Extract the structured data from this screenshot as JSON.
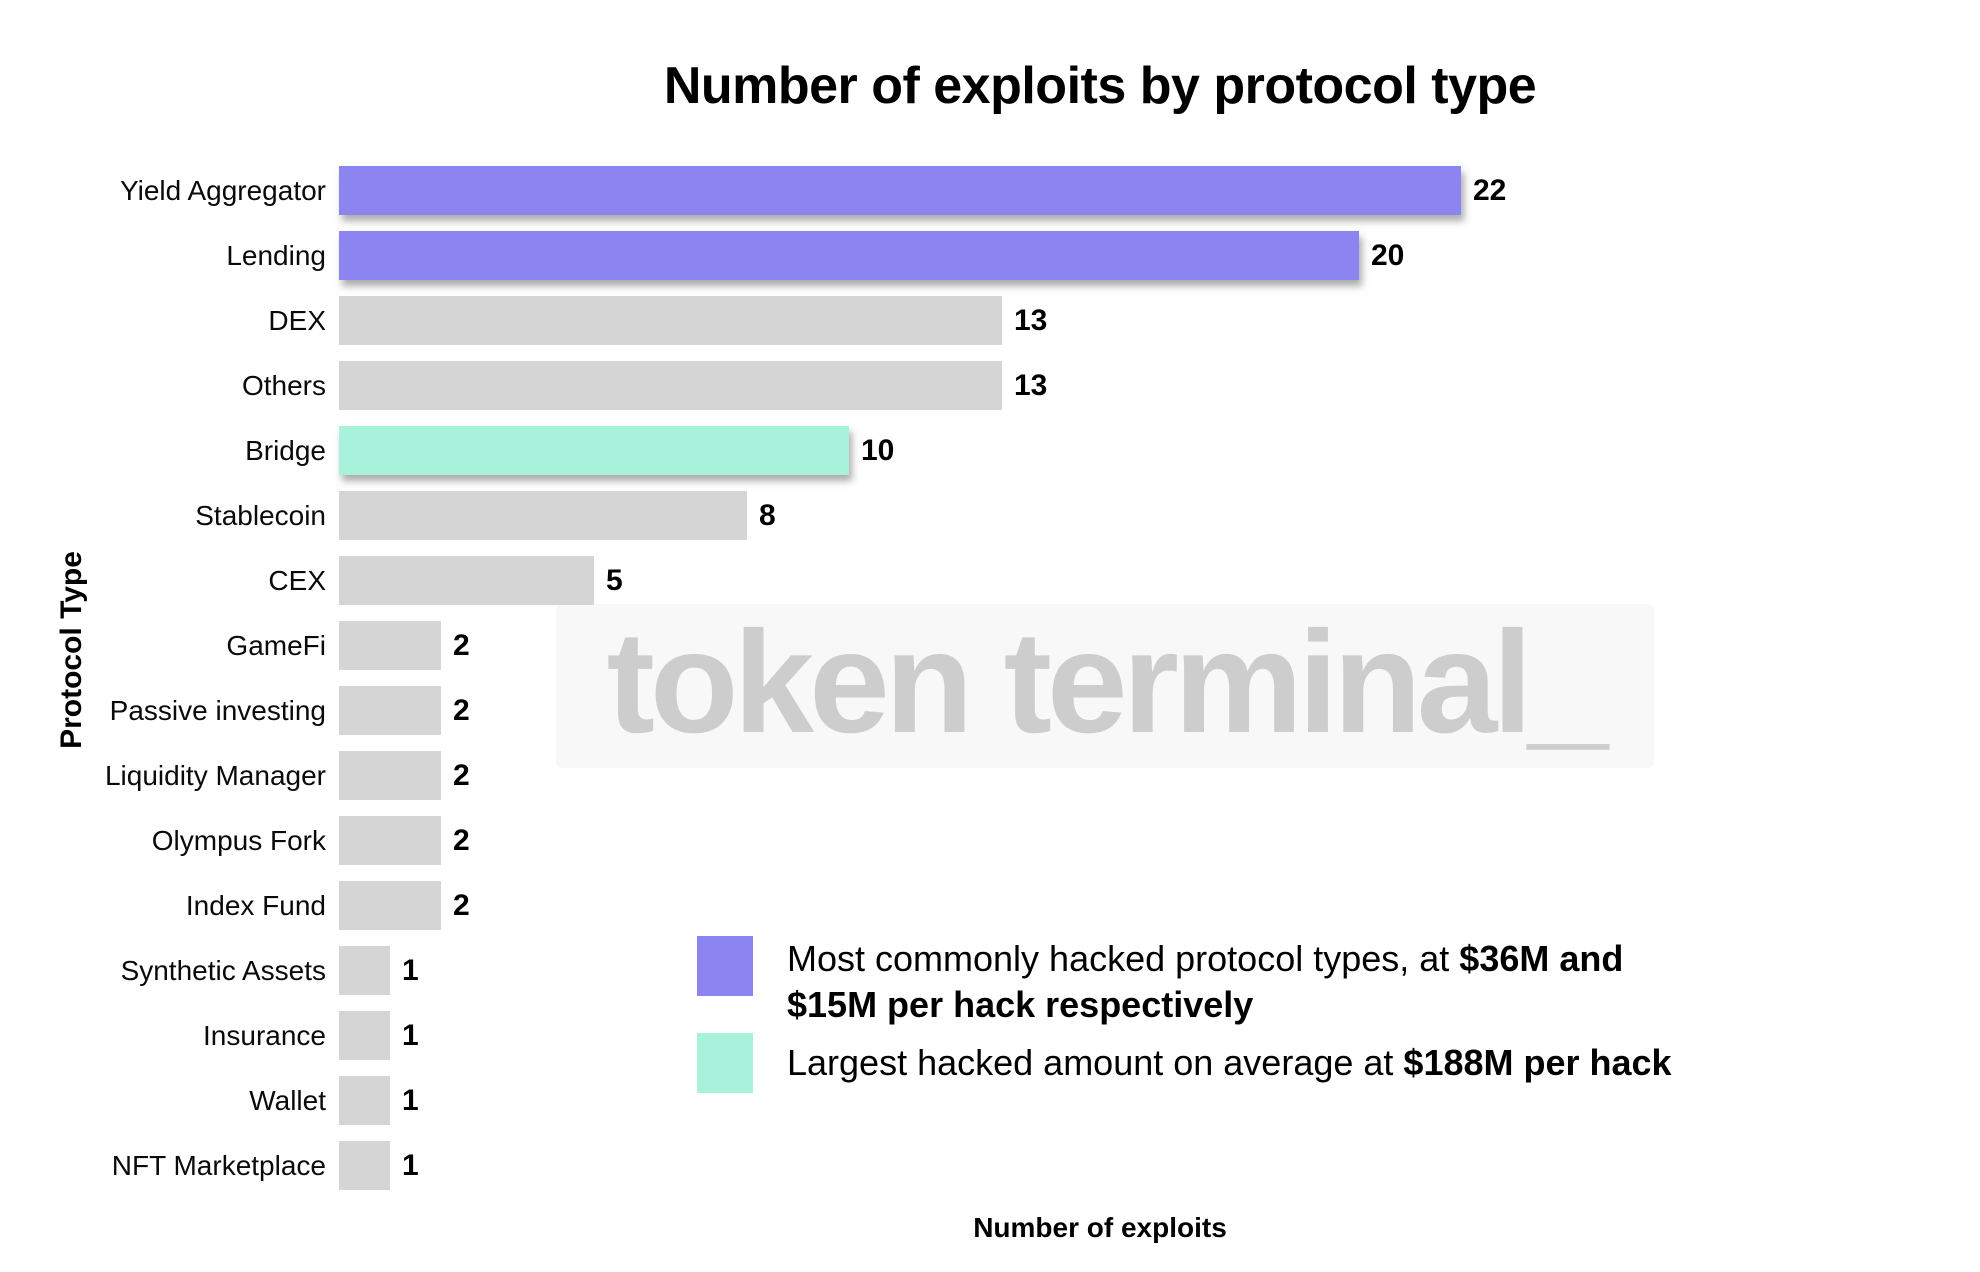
{
  "title": "Number of exploits by protocol type",
  "x_axis_label": "Number of exploits",
  "y_axis_label": "Protocol Type",
  "watermark": "token terminal_",
  "colors": {
    "purple": "#8c85f1",
    "teal": "#a8f2dc",
    "gray": "#d5d5d5",
    "watermark_text": "#cdcdcd",
    "watermark_bg": "#f8f8f8"
  },
  "chart_data": {
    "type": "bar",
    "orientation": "horizontal",
    "title": "Number of exploits by protocol type",
    "xlabel": "Number of exploits",
    "ylabel": "Protocol Type",
    "xlim": [
      0,
      22
    ],
    "grid": false,
    "categories": [
      "Yield Aggregator",
      "Lending",
      "DEX",
      "Others",
      "Bridge",
      "Stablecoin",
      "CEX",
      "GameFi",
      "Passive investing",
      "Liquidity Manager",
      "Olympus Fork",
      "Index Fund",
      "Synthetic Assets",
      "Insurance",
      "Wallet",
      "NFT Marketplace"
    ],
    "values": [
      22,
      20,
      13,
      13,
      10,
      8,
      5,
      2,
      2,
      2,
      2,
      2,
      1,
      1,
      1,
      1
    ],
    "bar_colors": [
      "purple",
      "purple",
      "gray",
      "gray",
      "teal",
      "gray",
      "gray",
      "gray",
      "gray",
      "gray",
      "gray",
      "gray",
      "gray",
      "gray",
      "gray",
      "gray"
    ]
  },
  "legend": [
    {
      "color_key": "purple",
      "text_regular": "Most commonly hacked protocol types, at ",
      "text_bold": "$36M and $15M per hack respectively"
    },
    {
      "color_key": "teal",
      "text_regular": "Largest hacked amount on average at ",
      "text_bold": "$188M per hack"
    }
  ]
}
